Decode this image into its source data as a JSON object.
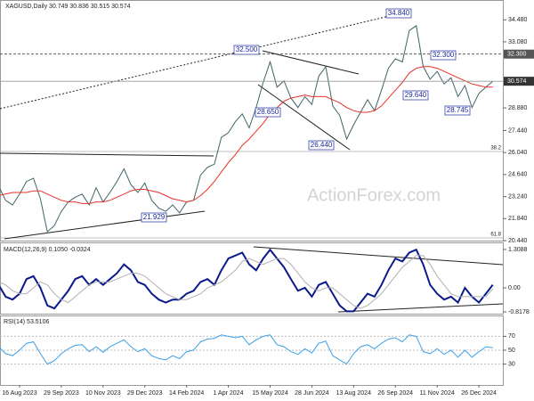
{
  "chart_data": [
    {
      "type": "line",
      "title": "XAGUSD,Daily 30.749 30.836 30.515 30.574",
      "watermark": "ActionForex.com",
      "ylim": [
        20.44,
        35.74
      ],
      "yticks": [
        {
          "value": 34.48,
          "label": "34.480"
        },
        {
          "value": 33.08,
          "label": "33.080"
        },
        {
          "value": 28.88,
          "label": "28.880"
        },
        {
          "value": 27.44,
          "label": "27.440"
        },
        {
          "value": 26.04,
          "label": "26.040"
        },
        {
          "value": 24.64,
          "label": "24.640"
        },
        {
          "value": 23.24,
          "label": "23.240"
        },
        {
          "value": 21.84,
          "label": "21.840"
        },
        {
          "value": 20.44,
          "label": "20.440"
        }
      ],
      "price_markers": [
        {
          "value": 32.3,
          "label": "32.300"
        },
        {
          "value": 30.574,
          "label": "30.574"
        }
      ],
      "annotations": [
        "34.840",
        "32.500",
        "32.300",
        "28.650",
        "29.640",
        "26.440",
        "28.745",
        "21.929",
        "38.2",
        "61.8"
      ],
      "series": [
        {
          "color": "#3f6464",
          "values": [
            23.9,
            23.0,
            22.7,
            23.4,
            24.2,
            24.4,
            23.1,
            21.0,
            21.4,
            22.3,
            22.9,
            23.2,
            23.4,
            22.7,
            23.8,
            22.9,
            23.5,
            24.2,
            25.0,
            24.0,
            23.5,
            24.1,
            23.0,
            22.5,
            22.3,
            22.7,
            22.2,
            22.9,
            23.0,
            24.6,
            25.1,
            25.3,
            27.0,
            27.3,
            28.0,
            28.5,
            27.6,
            28.9,
            30.5,
            31.8,
            30.2,
            30.6,
            29.5,
            28.9,
            29.6,
            29.1,
            30.9,
            31.5,
            29.0,
            28.4,
            26.9,
            27.8,
            28.6,
            29.4,
            28.7,
            30.0,
            31.4,
            32.0,
            31.8,
            33.8,
            34.1,
            31.5,
            30.7,
            31.2,
            30.4,
            30.8,
            29.6,
            30.3,
            28.9,
            29.8,
            30.2,
            30.574
          ]
        },
        {
          "color": "#e8302a",
          "values": [
            23.3,
            23.4,
            23.5,
            23.5,
            23.5,
            23.6,
            23.6,
            23.4,
            23.2,
            23.0,
            22.9,
            22.9,
            22.8,
            22.8,
            22.9,
            22.9,
            23.0,
            23.2,
            23.4,
            23.6,
            23.7,
            23.7,
            23.6,
            23.5,
            23.3,
            23.1,
            23.0,
            22.9,
            23.0,
            23.3,
            23.7,
            24.2,
            24.8,
            25.4,
            25.9,
            26.5,
            26.9,
            27.4,
            27.9,
            28.5,
            28.9,
            29.3,
            29.5,
            29.6,
            29.7,
            29.6,
            29.6,
            29.6,
            29.4,
            29.2,
            28.9,
            28.7,
            28.6,
            28.6,
            28.7,
            29.0,
            29.5,
            30.0,
            30.5,
            31.1,
            31.4,
            31.5,
            31.5,
            31.4,
            31.2,
            31.0,
            30.8,
            30.6,
            30.4,
            30.3,
            30.2,
            30.2
          ]
        }
      ]
    },
    {
      "type": "line",
      "title": "MACD(12,26,9) 0.1050 -0.0324",
      "ylim": [
        -0.88,
        1.55
      ],
      "yticks": [
        1.3088,
        {
          "value": 0,
          "label": "0.00"
        },
        -0.8178
      ],
      "series": [
        {
          "color": "#0a1a8c",
          "values": [
            0.1,
            -0.3,
            -0.4,
            -0.2,
            0.3,
            0.4,
            0.0,
            -0.6,
            -0.7,
            -0.4,
            -0.1,
            0.3,
            0.4,
            0.1,
            0.3,
            0.1,
            0.3,
            0.5,
            0.8,
            0.6,
            0.2,
            0.1,
            -0.2,
            -0.4,
            -0.5,
            -0.4,
            -0.4,
            -0.2,
            -0.1,
            0.2,
            0.3,
            0.1,
            0.6,
            1.0,
            1.1,
            1.2,
            0.8,
            0.6,
            1.0,
            1.3,
            1.0,
            0.7,
            0.3,
            -0.1,
            0.0,
            -0.3,
            0.1,
            0.2,
            -0.2,
            -0.6,
            -0.8,
            -0.8,
            -0.5,
            -0.2,
            -0.3,
            0.1,
            0.6,
            1.0,
            0.9,
            1.2,
            1.3,
            0.8,
            0.1,
            -0.2,
            -0.4,
            -0.3,
            -0.5,
            0.0,
            -0.3,
            -0.5,
            -0.2,
            0.105
          ]
        },
        {
          "color": "#b0b0b0",
          "values": [
            0.2,
            0.1,
            -0.1,
            -0.2,
            -0.2,
            0.0,
            0.2,
            0.1,
            -0.2,
            -0.4,
            -0.5,
            -0.3,
            -0.1,
            0.1,
            0.2,
            0.2,
            0.2,
            0.3,
            0.4,
            0.5,
            0.5,
            0.4,
            0.2,
            0.0,
            -0.2,
            -0.3,
            -0.4,
            -0.4,
            -0.3,
            -0.2,
            0.0,
            0.1,
            0.2,
            0.4,
            0.6,
            0.9,
            1.0,
            0.9,
            0.8,
            0.9,
            1.0,
            1.0,
            0.8,
            0.5,
            0.2,
            0.0,
            -0.1,
            0.0,
            0.0,
            -0.2,
            -0.4,
            -0.6,
            -0.7,
            -0.6,
            -0.4,
            -0.2,
            0.1,
            0.4,
            0.7,
            0.9,
            1.1,
            1.1,
            0.8,
            0.4,
            0.1,
            -0.2,
            -0.3,
            -0.3,
            -0.3,
            -0.3,
            -0.3,
            -0.0324
          ]
        }
      ]
    },
    {
      "type": "line",
      "title": "RSI(14) 53.5106",
      "ylim": [
        0,
        100
      ],
      "yticks": [
        70,
        50,
        30
      ],
      "categories": [
        null,
        null,
        null,
        "16 Aug 2023",
        null,
        null,
        null,
        null,
        null,
        "29 Sep 2023",
        null,
        null,
        null,
        null,
        null,
        "10 Nov 2023",
        null,
        null,
        null,
        null,
        null,
        "29 Dec 2023",
        null,
        null,
        null,
        null,
        null,
        "14 Feb 2024",
        null,
        null,
        null,
        null,
        null,
        "1 Apr 2024",
        null,
        null,
        null,
        null,
        null,
        "15 May 2024",
        null,
        null,
        null,
        null,
        null,
        "28 Jun 2024",
        null,
        null,
        null,
        null,
        null,
        "13 Aug 2024",
        null,
        null,
        null,
        null,
        null,
        "26 Sep 2024",
        null,
        null,
        null,
        null,
        null,
        "11 Nov 2024",
        null,
        null,
        null,
        null,
        null,
        "26 Dec 2024",
        null,
        null
      ],
      "series": [
        {
          "color": "#3aa0e8",
          "values": [
            55,
            45,
            42,
            50,
            60,
            62,
            45,
            30,
            35,
            45,
            52,
            57,
            58,
            48,
            55,
            47,
            55,
            60,
            65,
            55,
            48,
            52,
            42,
            38,
            36,
            42,
            38,
            48,
            50,
            62,
            66,
            67,
            72,
            70,
            68,
            70,
            58,
            65,
            70,
            72,
            58,
            55,
            48,
            44,
            52,
            46,
            60,
            63,
            42,
            36,
            30,
            45,
            55,
            58,
            52,
            60,
            66,
            68,
            62,
            72,
            70,
            48,
            45,
            52,
            44,
            50,
            40,
            50,
            40,
            48,
            55,
            53.5106
          ]
        }
      ]
    }
  ]
}
